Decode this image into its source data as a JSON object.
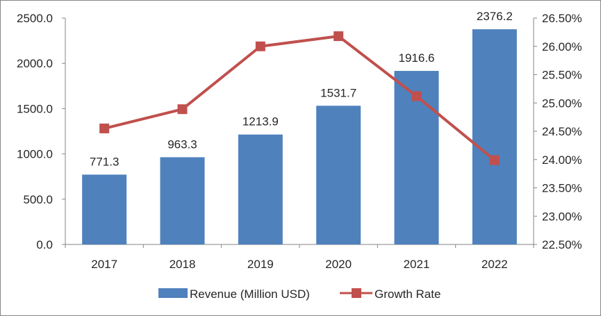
{
  "chart_data": {
    "type": "bar",
    "title": "",
    "categories": [
      "2017",
      "2018",
      "2019",
      "2020",
      "2021",
      "2022"
    ],
    "series": [
      {
        "name": "Revenue (Million USD)",
        "kind": "bar",
        "axis": "left",
        "color": "#4F81BD",
        "values": [
          771.3,
          963.3,
          1213.9,
          1531.7,
          1916.6,
          2376.2
        ],
        "labels": [
          "771.3",
          "963.3",
          "1213.9",
          "1531.7",
          "1916.6",
          "2376.2"
        ]
      },
      {
        "name": "Growth Rate",
        "kind": "line",
        "axis": "right",
        "color": "#C0504D",
        "values": [
          24.55,
          24.89,
          26.0,
          26.18,
          25.12,
          23.99
        ]
      }
    ],
    "y_left": {
      "min": 0,
      "max": 2500,
      "step": 500,
      "tick_labels": [
        "0.0",
        "500.0",
        "1000.0",
        "1500.0",
        "2000.0",
        "2500.0"
      ]
    },
    "y_right": {
      "min": 22.5,
      "max": 26.5,
      "step": 0.5,
      "tick_labels": [
        "22.50%",
        "23.00%",
        "23.50%",
        "24.00%",
        "24.50%",
        "25.00%",
        "25.50%",
        "26.00%",
        "26.50%"
      ]
    },
    "grid": false,
    "legend_position": "bottom"
  }
}
